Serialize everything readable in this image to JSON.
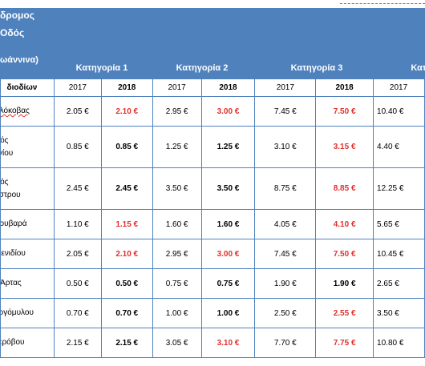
{
  "header": {
    "line1": "δρομος",
    "line2": "Οδός",
    "location_label": "ωάννινα)",
    "categories": [
      "Κατηγορία  1",
      "Κατηγορία 2",
      "Κατηγορία 3",
      "Κατ"
    ]
  },
  "subheader": {
    "label": "διοδίων",
    "years": [
      "2017",
      "2018",
      "2017",
      "2018",
      "2017",
      "2018",
      "2017"
    ]
  },
  "rows": [
    {
      "name": [
        "Κλόκοβας"
      ],
      "values": [
        "2.05 €",
        "2.10 €",
        "2.95 €",
        "3.00 €",
        "7.45 €",
        "7.50 €",
        "10.40 €"
      ],
      "red": [
        false,
        true,
        false,
        true,
        false,
        true,
        false
      ]
    },
    {
      "name": [
        "ικός",
        "γγίου"
      ],
      "values": [
        "0.85 €",
        "0.85 €",
        "1.25 €",
        "1.25 €",
        "3.10 €",
        "3.15 €",
        "4.40 €"
      ],
      "red": [
        false,
        false,
        false,
        false,
        false,
        true,
        false
      ]
    },
    {
      "name": [
        "ικός",
        "άστρου"
      ],
      "values": [
        "2.45 €",
        "2.45 €",
        "3.50 €",
        "3.50 €",
        "8.75 €",
        "8.85 €",
        "12.25 €"
      ],
      "red": [
        false,
        false,
        false,
        false,
        false,
        true,
        false
      ]
    },
    {
      "name": [
        "Κουβαρά"
      ],
      "values": [
        "1.10 €",
        "1.15 €",
        "1.60 €",
        "1.60 €",
        "4.05 €",
        "4.10 €",
        "5.65 €"
      ],
      "red": [
        false,
        true,
        false,
        false,
        false,
        true,
        false
      ]
    },
    {
      "name": [
        "Μενιδίου"
      ],
      "values": [
        "2.05 €",
        "2.10 €",
        "2.95 €",
        "3.00 €",
        "7.45 €",
        "7.50 €",
        "10.45 €"
      ],
      "red": [
        false,
        true,
        false,
        true,
        false,
        true,
        false
      ]
    },
    {
      "name": [
        "ς Άρτας"
      ],
      "values": [
        "0.50 €",
        "0.50 €",
        "0.75 €",
        "0.75 €",
        "1.90 €",
        "1.90 €",
        "2.65 €"
      ],
      "red": [
        false,
        false,
        false,
        false,
        false,
        false,
        false
      ]
    },
    {
      "name": [
        "οργόμυλου"
      ],
      "values": [
        "0.70 €",
        "0.70 €",
        "1.00 €",
        "1.00 €",
        "2.50 €",
        "2.55 €",
        "3.50 €"
      ],
      "red": [
        false,
        false,
        false,
        false,
        false,
        true,
        false
      ]
    },
    {
      "name": [
        "Τερόβου"
      ],
      "values": [
        "2.15 €",
        "2.15 €",
        "3.05 €",
        "3.10 €",
        "7.70 €",
        "7.75 €",
        "10.80 €"
      ],
      "red": [
        false,
        false,
        false,
        true,
        false,
        true,
        false
      ]
    }
  ]
}
